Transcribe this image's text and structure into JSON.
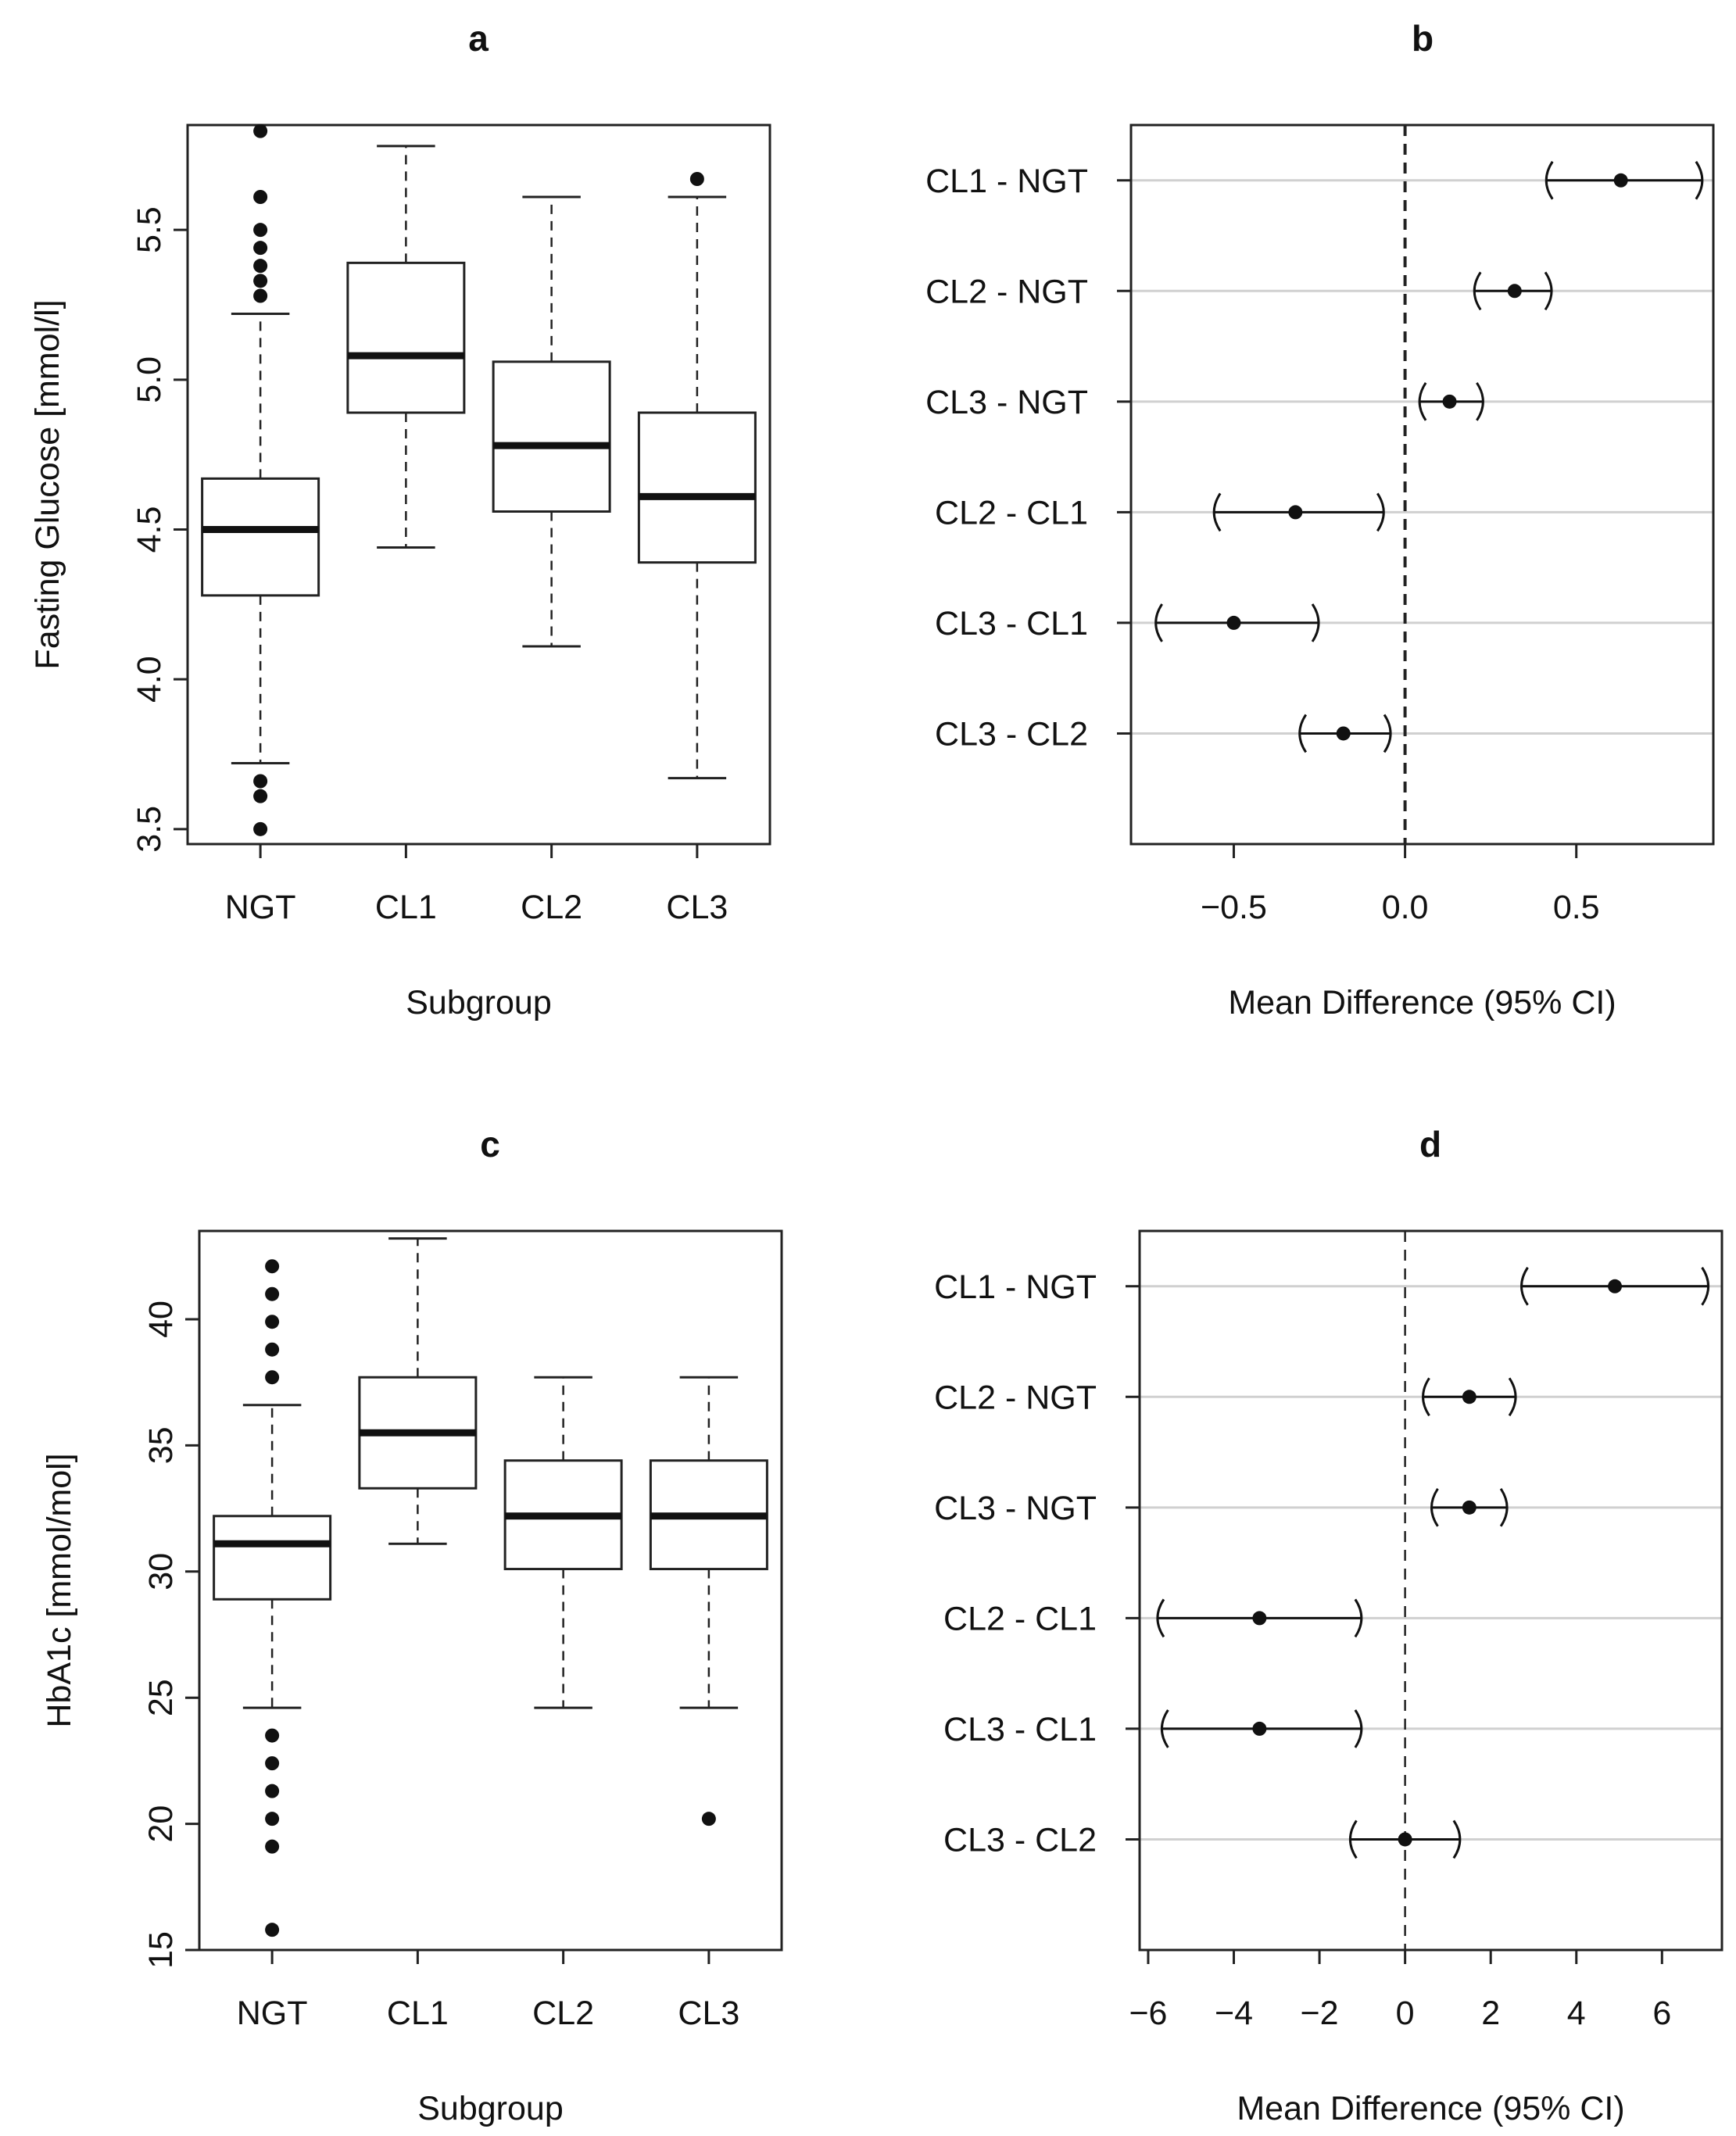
{
  "chart_data": [
    {
      "panel": "a",
      "type": "boxplot",
      "title": "a",
      "xlabel": "Subgroup",
      "ylabel": "Fasting Glucose [mmol/l]",
      "ylim": [
        3.45,
        5.85
      ],
      "yticks": [
        3.5,
        4.0,
        4.5,
        5.0,
        5.5
      ],
      "ytick_labels": [
        "3.5",
        "4.0",
        "4.5",
        "5.0",
        "5.5"
      ],
      "categories": [
        "NGT",
        "CL1",
        "CL2",
        "CL3"
      ],
      "boxes": [
        {
          "name": "NGT",
          "whisker_low": 3.72,
          "q1": 4.28,
          "median": 4.5,
          "q3": 4.67,
          "whisker_high": 5.22,
          "outliers": [
            3.5,
            3.61,
            3.66,
            5.28,
            5.33,
            5.38,
            5.44,
            5.5,
            5.61,
            5.83
          ]
        },
        {
          "name": "CL1",
          "whisker_low": 4.44,
          "q1": 4.89,
          "median": 5.08,
          "q3": 5.39,
          "whisker_high": 5.78,
          "outliers": []
        },
        {
          "name": "CL2",
          "whisker_low": 4.11,
          "q1": 4.56,
          "median": 4.78,
          "q3": 5.06,
          "whisker_high": 5.61,
          "outliers": []
        },
        {
          "name": "CL3",
          "whisker_low": 3.67,
          "q1": 4.39,
          "median": 4.61,
          "q3": 4.89,
          "whisker_high": 5.61,
          "outliers": [
            5.67
          ]
        }
      ]
    },
    {
      "panel": "b",
      "type": "forest",
      "title": "b",
      "xlabel": "Mean Difference (95% CI)",
      "xlim": [
        -0.8,
        0.9
      ],
      "xticks": [
        -0.5,
        0.0,
        0.5
      ],
      "xtick_labels": [
        "−0.5",
        "0.0",
        "0.5"
      ],
      "reference_line": 0,
      "rows": [
        {
          "label": "CL1 - NGT",
          "estimate": 0.63,
          "lower": 0.41,
          "upper": 0.87
        },
        {
          "label": "CL2 - NGT",
          "estimate": 0.32,
          "lower": 0.2,
          "upper": 0.43
        },
        {
          "label": "CL3 - NGT",
          "estimate": 0.13,
          "lower": 0.04,
          "upper": 0.23
        },
        {
          "label": "CL2 - CL1",
          "estimate": -0.32,
          "lower": -0.56,
          "upper": -0.06
        },
        {
          "label": "CL3 - CL1",
          "estimate": -0.5,
          "lower": -0.73,
          "upper": -0.25
        },
        {
          "label": "CL3 - CL2",
          "estimate": -0.18,
          "lower": -0.31,
          "upper": -0.04
        }
      ]
    },
    {
      "panel": "c",
      "type": "boxplot",
      "title": "c",
      "xlabel": "Subgroup",
      "ylabel": "HbA1c [mmol/mol]",
      "ylim": [
        15,
        43.5
      ],
      "yticks": [
        15,
        20,
        25,
        30,
        35,
        40
      ],
      "ytick_labels": [
        "15",
        "20",
        "25",
        "30",
        "35",
        "40"
      ],
      "categories": [
        "NGT",
        "CL1",
        "CL2",
        "CL3"
      ],
      "boxes": [
        {
          "name": "NGT",
          "whisker_low": 24.6,
          "q1": 28.9,
          "median": 31.1,
          "q3": 32.2,
          "whisker_high": 36.6,
          "outliers": [
            15.8,
            19.1,
            20.2,
            21.3,
            22.4,
            23.5,
            37.7,
            38.8,
            39.9,
            41.0,
            42.1
          ]
        },
        {
          "name": "CL1",
          "whisker_low": 31.1,
          "q1": 33.3,
          "median": 35.5,
          "q3": 37.7,
          "whisker_high": 43.2,
          "outliers": []
        },
        {
          "name": "CL2",
          "whisker_low": 24.6,
          "q1": 30.1,
          "median": 32.2,
          "q3": 34.4,
          "whisker_high": 37.7,
          "outliers": []
        },
        {
          "name": "CL3",
          "whisker_low": 24.6,
          "q1": 30.1,
          "median": 32.2,
          "q3": 34.4,
          "whisker_high": 37.7,
          "outliers": [
            20.2
          ]
        }
      ]
    },
    {
      "panel": "d",
      "type": "forest",
      "title": "d",
      "xlabel": "Mean Difference (95% CI)",
      "xlim": [
        -6.2,
        7.4
      ],
      "xticks": [
        -6,
        -4,
        -2,
        0,
        2,
        4,
        6
      ],
      "xtick_labels": [
        "−6",
        "−4",
        "−2",
        "0",
        "2",
        "4",
        "6"
      ],
      "reference_line": 0,
      "rows": [
        {
          "label": "CL1 - NGT",
          "estimate": 4.9,
          "lower": 2.7,
          "upper": 7.1
        },
        {
          "label": "CL2 - NGT",
          "estimate": 1.5,
          "lower": 0.4,
          "upper": 2.6
        },
        {
          "label": "CL3 - NGT",
          "estimate": 1.5,
          "lower": 0.6,
          "upper": 2.4
        },
        {
          "label": "CL2 - CL1",
          "estimate": -3.4,
          "lower": -5.8,
          "upper": -1.0
        },
        {
          "label": "CL3 - CL1",
          "estimate": -3.4,
          "lower": -5.7,
          "upper": -1.0
        },
        {
          "label": "CL3 - CL2",
          "estimate": 0.0,
          "lower": -1.3,
          "upper": 1.3
        }
      ]
    }
  ]
}
